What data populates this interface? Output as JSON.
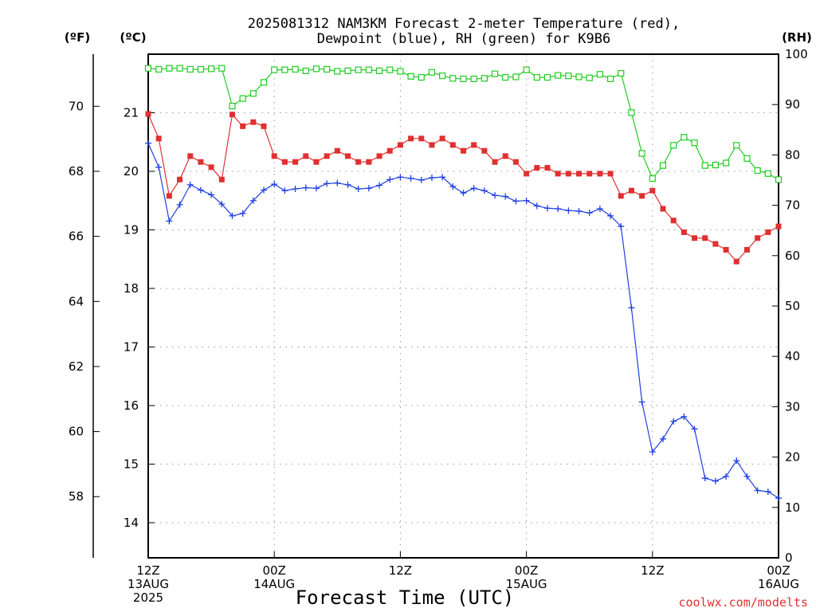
{
  "chart_data": {
    "type": "line",
    "title_line1": "2025081312 NAM3KM Forecast 2-meter Temperature (red),",
    "title_line2": "Dewpoint (blue), RH (green) for K9B6",
    "xlabel": "Forecast Time (UTC)",
    "credit": "coolwx.com/modelts",
    "axis_units": {
      "fahrenheit": "(ºF)",
      "celsius": "(ºC)",
      "rh": "(RH)"
    },
    "x_hours_range": [
      0,
      60
    ],
    "x_ticks": [
      {
        "h": 0,
        "line1": "12Z",
        "line2": "13AUG",
        "line3": "2025"
      },
      {
        "h": 12,
        "line1": "00Z",
        "line2": "14AUG",
        "line3": ""
      },
      {
        "h": 24,
        "line1": "12Z",
        "line2": "",
        "line3": ""
      },
      {
        "h": 36,
        "line1": "00Z",
        "line2": "15AUG",
        "line3": ""
      },
      {
        "h": 48,
        "line1": "12Z",
        "line2": "",
        "line3": ""
      },
      {
        "h": 60,
        "line1": "00Z",
        "line2": "16AUG",
        "line3": ""
      }
    ],
    "celsius_range": [
      13.4,
      22.0
    ],
    "celsius_ticks": [
      "14",
      "15",
      "16",
      "17",
      "18",
      "19",
      "20",
      "21"
    ],
    "fahrenheit_ticks": [
      "58",
      "60",
      "62",
      "64",
      "66",
      "68",
      "70"
    ],
    "rh_range": [
      0,
      100
    ],
    "rh_ticks": [
      "0",
      "10",
      "20",
      "30",
      "40",
      "50",
      "60",
      "70",
      "80",
      "90",
      "100"
    ],
    "grid": true,
    "colors": {
      "temperature": "#e03030",
      "dewpoint": "#2040e0",
      "rh": "#20cc20",
      "grid": "#999999"
    },
    "series": [
      {
        "key": "temperature",
        "unit": "C",
        "marker": "filled-square",
        "values": [
          20.98,
          20.56,
          19.58,
          19.86,
          20.26,
          20.16,
          20.07,
          19.86,
          20.97,
          20.77,
          20.84,
          20.77,
          20.26,
          20.16,
          20.16,
          20.26,
          20.16,
          20.26,
          20.35,
          20.26,
          20.16,
          20.16,
          20.26,
          20.35,
          20.45,
          20.56,
          20.56,
          20.45,
          20.56,
          20.45,
          20.35,
          20.45,
          20.35,
          20.16,
          20.26,
          20.16,
          19.96,
          20.06,
          20.06,
          19.96,
          19.96,
          19.96,
          19.96,
          19.96,
          19.96,
          19.58,
          19.67,
          19.58,
          19.67,
          19.36,
          19.16,
          18.96,
          18.86,
          18.86,
          18.76,
          18.66,
          18.46,
          18.66,
          18.86,
          18.96,
          19.06
        ]
      },
      {
        "key": "dewpoint",
        "unit": "C",
        "marker": "plus",
        "values": [
          20.48,
          20.07,
          19.15,
          19.43,
          19.77,
          19.68,
          19.6,
          19.44,
          19.24,
          19.28,
          19.5,
          19.68,
          19.78,
          19.67,
          19.7,
          19.72,
          19.71,
          19.79,
          19.8,
          19.77,
          19.7,
          19.71,
          19.76,
          19.86,
          19.9,
          19.88,
          19.85,
          19.89,
          19.9,
          19.74,
          19.63,
          19.71,
          19.67,
          19.59,
          19.57,
          19.49,
          19.5,
          19.41,
          19.37,
          19.36,
          19.33,
          19.32,
          19.29,
          19.36,
          19.24,
          19.06,
          17.67,
          16.06,
          15.21,
          15.43,
          15.73,
          15.81,
          15.6,
          14.76,
          14.71,
          14.79,
          15.06,
          14.79,
          14.55,
          14.53,
          14.42
        ]
      },
      {
        "key": "rh",
        "unit": "%",
        "marker": "open-square",
        "values": [
          97.2,
          97.0,
          97.2,
          97.2,
          97.0,
          97.0,
          97.1,
          97.2,
          89.7,
          91.2,
          92.2,
          94.4,
          96.9,
          96.9,
          97.0,
          96.7,
          97.1,
          97.0,
          96.6,
          96.7,
          96.9,
          96.9,
          96.7,
          96.9,
          96.6,
          95.6,
          95.4,
          96.4,
          95.7,
          95.2,
          95.1,
          95.1,
          95.2,
          96.1,
          95.4,
          95.5,
          96.9,
          95.4,
          95.4,
          95.8,
          95.7,
          95.5,
          95.3,
          96.0,
          95.1,
          96.2,
          88.4,
          80.3,
          75.3,
          77.9,
          81.9,
          83.5,
          82.4,
          77.9,
          78.0,
          78.4,
          81.9,
          79.3,
          76.9,
          76.3,
          75.1
        ]
      }
    ]
  }
}
